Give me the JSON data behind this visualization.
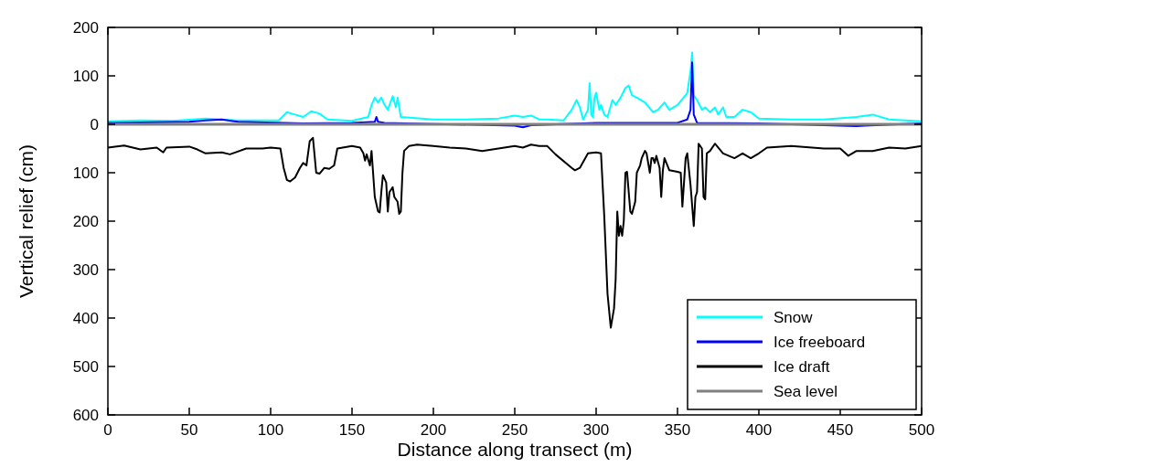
{
  "chart_data": {
    "type": "line",
    "xlabel": "Distance along transect (m)",
    "ylabel": "Vertical relief (cm)",
    "xlim": [
      0,
      500
    ],
    "ylim": [
      -600,
      200
    ],
    "xticks": [
      0,
      50,
      100,
      150,
      200,
      250,
      300,
      350,
      400,
      450,
      500
    ],
    "yticks": [
      200,
      100,
      0,
      {
        "value": -100,
        "label": "100"
      },
      {
        "value": -200,
        "label": "200"
      },
      {
        "value": -300,
        "label": "300"
      },
      {
        "value": -400,
        "label": "400"
      },
      {
        "value": -500,
        "label": "500"
      },
      {
        "value": -600,
        "label": "600"
      }
    ],
    "grid": false,
    "legend": "bottom right",
    "line_style": "solid",
    "series": [
      {
        "name": "Snow",
        "color": "#00ffff",
        "x": [
          0,
          20,
          40,
          60,
          80,
          100,
          105,
          110,
          115,
          120,
          125,
          130,
          135,
          150,
          160,
          162,
          164,
          166,
          168,
          170,
          172,
          175,
          177,
          178,
          180,
          200,
          220,
          240,
          250,
          255,
          260,
          265,
          270,
          280,
          285,
          288,
          290,
          292,
          295,
          296,
          297,
          298,
          299,
          300,
          302,
          303,
          305,
          307,
          310,
          312,
          315,
          318,
          320,
          322,
          325,
          330,
          335,
          338,
          342,
          345,
          350,
          355,
          356,
          358,
          359,
          360,
          362,
          365,
          367,
          370,
          373,
          375,
          378,
          380,
          385,
          390,
          395,
          400,
          420,
          440,
          460,
          470,
          480,
          490,
          500
        ],
        "values": [
          6,
          8,
          7,
          12,
          8,
          8,
          8,
          25,
          20,
          15,
          27,
          22,
          10,
          7,
          15,
          40,
          55,
          45,
          55,
          40,
          30,
          58,
          35,
          55,
          15,
          10,
          10,
          12,
          18,
          15,
          18,
          10,
          10,
          8,
          30,
          50,
          35,
          10,
          30,
          85,
          20,
          15,
          55,
          65,
          30,
          40,
          20,
          15,
          50,
          40,
          55,
          75,
          80,
          60,
          55,
          45,
          25,
          30,
          45,
          30,
          40,
          60,
          65,
          110,
          148,
          60,
          50,
          30,
          35,
          25,
          35,
          20,
          35,
          15,
          15,
          30,
          25,
          12,
          10,
          10,
          15,
          20,
          10,
          8,
          6
        ]
      },
      {
        "name": "Ice freeboard",
        "color": "#0000ff",
        "x": [
          0,
          50,
          60,
          70,
          80,
          120,
          150,
          164,
          165,
          166,
          170,
          250,
          255,
          260,
          300,
          350,
          356,
          358,
          359,
          360,
          362,
          400,
          460,
          465,
          500
        ],
        "values": [
          3,
          5,
          8,
          10,
          5,
          2,
          3,
          5,
          15,
          5,
          3,
          -3,
          -6,
          -2,
          3,
          3,
          10,
          30,
          128,
          20,
          3,
          2,
          -4,
          -3,
          2
        ]
      },
      {
        "name": "Ice draft",
        "color": "#000000",
        "x": [
          0,
          10,
          20,
          30,
          34,
          36,
          50,
          55,
          60,
          70,
          75,
          85,
          95,
          100,
          106,
          108,
          110,
          112,
          115,
          118,
          120,
          122,
          124,
          126,
          128,
          130,
          133,
          136,
          139,
          141,
          150,
          155,
          157,
          158,
          159,
          161,
          162,
          164,
          166,
          167,
          168,
          169,
          171,
          172,
          173,
          175,
          176,
          178,
          179,
          180,
          181,
          182,
          185,
          190,
          200,
          210,
          220,
          230,
          240,
          250,
          255,
          260,
          265,
          270,
          275,
          285,
          287,
          290,
          295,
          300,
          303,
          305,
          307,
          309,
          311,
          312,
          313,
          314,
          315,
          316,
          317,
          318,
          319,
          321,
          322,
          324,
          325,
          327,
          328,
          330,
          331,
          333,
          334,
          335,
          336,
          337,
          339,
          340,
          341,
          342,
          345,
          350,
          352,
          353,
          355,
          356,
          358,
          360,
          361,
          362,
          363,
          365,
          366,
          367,
          368,
          370,
          373,
          378,
          385,
          390,
          395,
          400,
          405,
          420,
          440,
          450,
          455,
          460,
          470,
          480,
          490,
          500
        ],
        "values": [
          -48,
          -44,
          -52,
          -48,
          -58,
          -48,
          -46,
          -52,
          -60,
          -58,
          -62,
          -50,
          -50,
          -48,
          -50,
          -90,
          -115,
          -118,
          -110,
          -90,
          -80,
          -85,
          -35,
          -28,
          -100,
          -102,
          -90,
          -92,
          -85,
          -50,
          -45,
          -48,
          -60,
          -75,
          -62,
          -85,
          -55,
          -150,
          -180,
          -182,
          -140,
          -105,
          -120,
          -180,
          -140,
          -130,
          -150,
          -160,
          -185,
          -180,
          -100,
          -55,
          -45,
          -42,
          -45,
          -48,
          -50,
          -55,
          -50,
          -45,
          -48,
          -42,
          -45,
          -45,
          -62,
          -90,
          -95,
          -90,
          -60,
          -58,
          -60,
          -190,
          -350,
          -420,
          -380,
          -320,
          -180,
          -230,
          -210,
          -230,
          -200,
          -100,
          -98,
          -180,
          -185,
          -160,
          -100,
          -85,
          -70,
          -55,
          -60,
          -100,
          -70,
          -70,
          -80,
          -65,
          -90,
          -150,
          -95,
          -70,
          -95,
          -98,
          -100,
          -170,
          -70,
          -60,
          -125,
          -210,
          -150,
          -140,
          -40,
          -50,
          -150,
          -155,
          -60,
          -55,
          -40,
          -60,
          -70,
          -60,
          -70,
          -60,
          -48,
          -45,
          -50,
          -50,
          -65,
          -55,
          -55,
          -48,
          -50,
          -45
        ]
      },
      {
        "name": "Sea level",
        "color": "#808080",
        "x": [
          0,
          500
        ],
        "values": [
          0,
          0
        ]
      }
    ]
  }
}
